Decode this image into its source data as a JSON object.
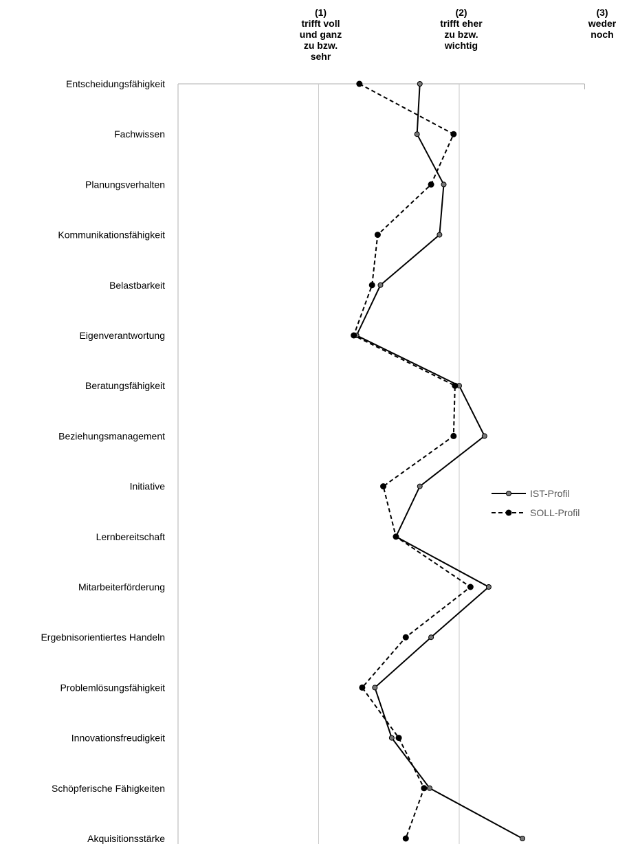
{
  "chart_data": {
    "type": "line",
    "orientation": "horizontal-profile",
    "title": "",
    "x_axis": {
      "min": 0,
      "max": 3,
      "grid": true,
      "headers": [
        {
          "value": 1,
          "lines": [
            "(1)",
            "trifft voll",
            "und ganz",
            "zu bzw.",
            "sehr"
          ]
        },
        {
          "value": 2,
          "lines": [
            "(2)",
            "trifft eher",
            "zu bzw.",
            "wichtig"
          ]
        },
        {
          "value": 3,
          "lines": [
            "(3)",
            "weder",
            "noch"
          ]
        }
      ]
    },
    "categories": [
      "Entscheidungsfähigkeit",
      "Fachwissen",
      "Planungsverhalten",
      "Kommunikationsfähigkeit",
      "Belastbarkeit",
      "Eigenverantwortung",
      "Beratungsfähigkeit",
      "Beziehungsmanagement",
      "Initiative",
      "Lernbereitschaft",
      "Mitarbeiterförderung",
      "Ergebnisorientiertes Handeln",
      "Problemlösungsfähigkeit",
      "Innovationsfreudigkeit",
      "Schöpferische Fähigkeiten",
      "Akquisitionsstärke"
    ],
    "series": [
      {
        "name": "IST-Profil",
        "style": "solid",
        "color": "#000000",
        "marker_color": "#777777",
        "values": [
          1.72,
          1.7,
          1.89,
          1.86,
          1.44,
          1.27,
          2.0,
          2.18,
          1.72,
          1.55,
          2.21,
          1.8,
          1.4,
          1.52,
          1.79,
          2.45
        ]
      },
      {
        "name": "SOLL-Profil",
        "style": "dashed",
        "color": "#000000",
        "marker_color": "#000000",
        "values": [
          1.29,
          1.96,
          1.8,
          1.42,
          1.38,
          1.25,
          1.97,
          1.96,
          1.46,
          1.55,
          2.08,
          1.62,
          1.31,
          1.57,
          1.75,
          1.62
        ]
      }
    ],
    "legend": {
      "position": "right"
    }
  }
}
